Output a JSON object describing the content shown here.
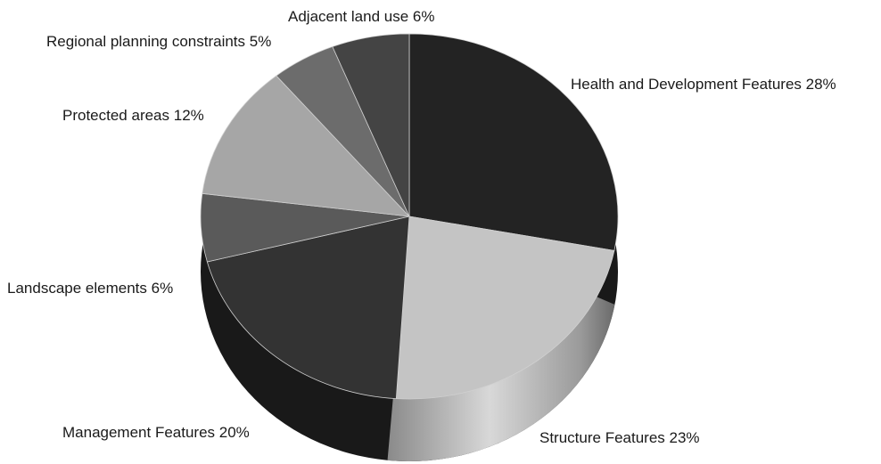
{
  "chart_data": {
    "type": "pie",
    "style": "3d",
    "slices": [
      {
        "label": "Health and Development Features",
        "value": 28,
        "text": "Health and Development Features 28%",
        "color": "#232323"
      },
      {
        "label": "Structure Features",
        "value": 23,
        "text": "Structure Features 23%",
        "color": "#c4c4c4"
      },
      {
        "label": "Management Features",
        "value": 20,
        "text": "Management Features 20%",
        "color": "#333333"
      },
      {
        "label": "Landscape elements",
        "value": 6,
        "text": "Landscape elements 6%",
        "color": "#5a5a5a"
      },
      {
        "label": "Protected areas",
        "value": 12,
        "text": "Protected areas 12%",
        "color": "#a6a6a6"
      },
      {
        "label": "Regional planning constraints",
        "value": 5,
        "text": "Regional planning constraints 5%",
        "color": "#6c6c6c"
      },
      {
        "label": "Adjacent land use",
        "value": 6,
        "text": "Adjacent land use 6%",
        "color": "#444444"
      }
    ]
  }
}
